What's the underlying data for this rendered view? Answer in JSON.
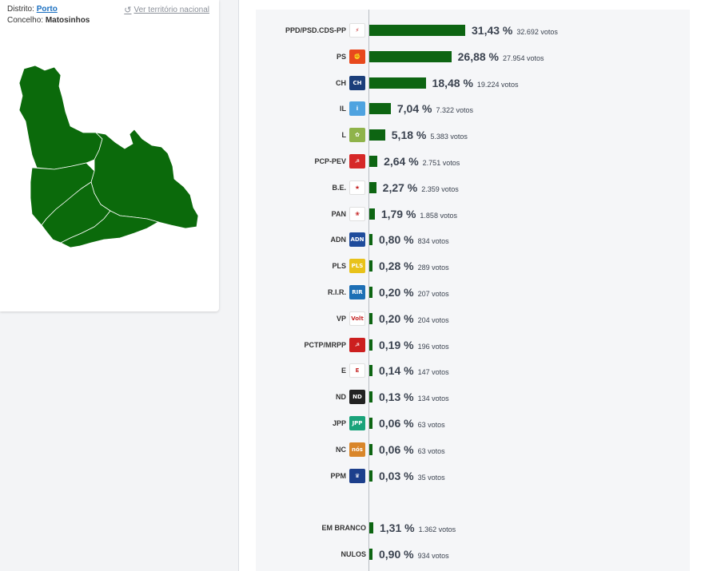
{
  "location": {
    "district_label": "Distrito:",
    "district_value": "Porto",
    "municipality_label": "Concelho:",
    "municipality_value": "Matosinhos",
    "national_link": "Ver território nacional"
  },
  "colors": {
    "bar": "#0d6512",
    "map": "#0b6a0b"
  },
  "results": [
    {
      "party": "PPD/PSD.CDS-PP",
      "pct": "31,43 %",
      "votes": "32.692 votos",
      "share": 31.43,
      "logo": "psd-cds-logo",
      "logo_text": "⚡",
      "logo_color": "#ffffff"
    },
    {
      "party": "PS",
      "pct": "26,88 %",
      "votes": "27.954 votos",
      "share": 26.88,
      "logo": "ps-logo",
      "logo_text": "✊",
      "logo_color": "#e8491d"
    },
    {
      "party": "CH",
      "pct": "18,48 %",
      "votes": "19.224 votos",
      "share": 18.48,
      "logo": "chega-logo",
      "logo_text": "CH",
      "logo_color": "#1b3e7a"
    },
    {
      "party": "IL",
      "pct": "7,04 %",
      "votes": "7.322 votos",
      "share": 7.04,
      "logo": "il-logo",
      "logo_text": "i",
      "logo_color": "#4fa3e0"
    },
    {
      "party": "L",
      "pct": "5,18 %",
      "votes": "5.383 votos",
      "share": 5.18,
      "logo": "livre-logo",
      "logo_text": "✿",
      "logo_color": "#8fb34a"
    },
    {
      "party": "PCP-PEV",
      "pct": "2,64 %",
      "votes": "2.751 votos",
      "share": 2.64,
      "logo": "pcp-pev-logo",
      "logo_text": "☭",
      "logo_color": "#d62828"
    },
    {
      "party": "B.E.",
      "pct": "2,27 %",
      "votes": "2.359 votos",
      "share": 2.27,
      "logo": "be-logo",
      "logo_text": "★",
      "logo_color": "#ffffff"
    },
    {
      "party": "PAN",
      "pct": "1,79 %",
      "votes": "1.858 votos",
      "share": 1.79,
      "logo": "pan-logo",
      "logo_text": "❀",
      "logo_color": "#ffffff"
    },
    {
      "party": "ADN",
      "pct": "0,80 %",
      "votes": "834 votos",
      "share": 0.8,
      "logo": "adn-logo",
      "logo_text": "ADN",
      "logo_color": "#1f4c9c"
    },
    {
      "party": "PLS",
      "pct": "0,28 %",
      "votes": "289 votos",
      "share": 0.28,
      "logo": "pls-logo",
      "logo_text": "PLS",
      "logo_color": "#e8c21a"
    },
    {
      "party": "R.I.R.",
      "pct": "0,20 %",
      "votes": "207 votos",
      "share": 0.2,
      "logo": "rir-logo",
      "logo_text": "RIR",
      "logo_color": "#1d6fb5"
    },
    {
      "party": "VP",
      "pct": "0,20 %",
      "votes": "204 votos",
      "share": 0.2,
      "logo": "volt-logo",
      "logo_text": "Volt",
      "logo_color": "#ffffff"
    },
    {
      "party": "PCTP/MRPP",
      "pct": "0,19 %",
      "votes": "196 votos",
      "share": 0.19,
      "logo": "pctp-logo",
      "logo_text": "☭",
      "logo_color": "#cc1f1f"
    },
    {
      "party": "E",
      "pct": "0,14 %",
      "votes": "147 votos",
      "share": 0.14,
      "logo": "ergue-te-logo",
      "logo_text": "E",
      "logo_color": "#ffffff"
    },
    {
      "party": "ND",
      "pct": "0,13 %",
      "votes": "134 votos",
      "share": 0.13,
      "logo": "nd-logo",
      "logo_text": "ND",
      "logo_color": "#222222"
    },
    {
      "party": "JPP",
      "pct": "0,06 %",
      "votes": "63 votos",
      "share": 0.06,
      "logo": "jpp-logo",
      "logo_text": "JPP",
      "logo_color": "#1aa37a"
    },
    {
      "party": "NC",
      "pct": "0,06 %",
      "votes": "63 votos",
      "share": 0.06,
      "logo": "nc-logo",
      "logo_text": "nós",
      "logo_color": "#d9862a"
    },
    {
      "party": "PPM",
      "pct": "0,03 %",
      "votes": "35 votos",
      "share": 0.03,
      "logo": "ppm-logo",
      "logo_text": "♛",
      "logo_color": "#1c3f8c"
    }
  ],
  "other_results": [
    {
      "party": "EM BRANCO",
      "pct": "1,31 %",
      "votes": "1.362 votos",
      "share": 1.31
    },
    {
      "party": "NULOS",
      "pct": "0,90 %",
      "votes": "934 votos",
      "share": 0.9
    }
  ]
}
